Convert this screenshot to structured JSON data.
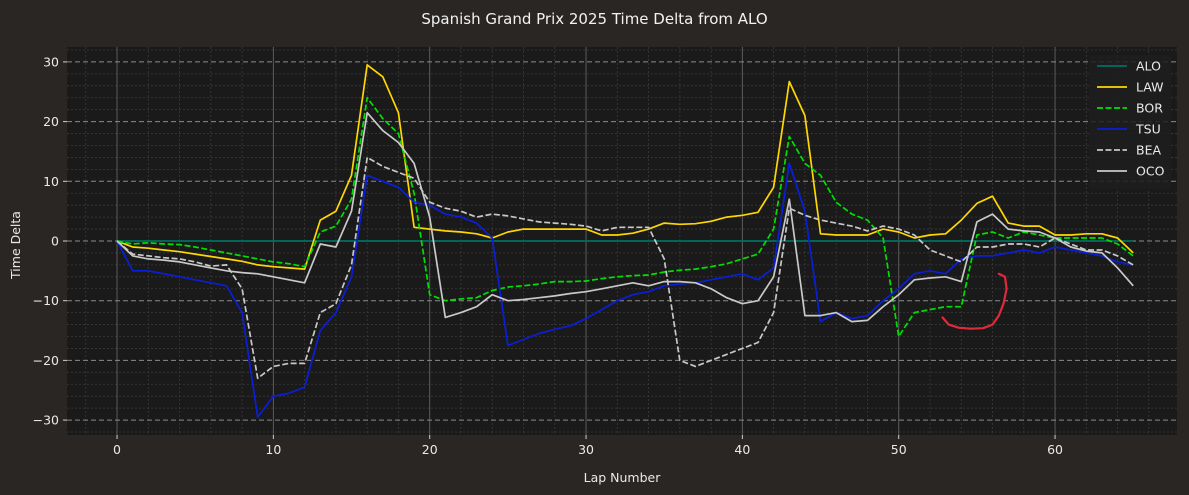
{
  "chart_data": {
    "type": "line",
    "title": "Spanish Grand Prix 2025 Time Delta from ALO",
    "xlabel": "Lap Number",
    "ylabel": "Time Delta",
    "xlim": [
      -3.2,
      67.8
    ],
    "ylim": [
      -32.5,
      32.5
    ],
    "xticks": [
      0,
      10,
      20,
      30,
      40,
      50,
      60
    ],
    "yticks": [
      -30,
      -20,
      -10,
      0,
      10,
      20,
      30
    ],
    "ytick_labels": [
      "−30",
      "−20",
      "−10",
      "0",
      "10",
      "20",
      "30"
    ],
    "grid": true,
    "legend_position": "top-right",
    "background": "#1a1a1a",
    "series": [
      {
        "name": "ALO",
        "color": "#006f62",
        "dash": "solid",
        "x": [
          0,
          65
        ],
        "y": [
          0,
          0
        ]
      },
      {
        "name": "LAW",
        "color": "#ffd700",
        "dash": "solid",
        "x": [
          0,
          1,
          2,
          3,
          4,
          5,
          6,
          7,
          8,
          9,
          10,
          11,
          12,
          13,
          14,
          15,
          16,
          17,
          18,
          19,
          20,
          21,
          22,
          23,
          24,
          25,
          26,
          27,
          28,
          29,
          30,
          31,
          32,
          33,
          34,
          35,
          36,
          37,
          38,
          39,
          40,
          41,
          42,
          43,
          44,
          45,
          46,
          47,
          48,
          49,
          50,
          51,
          52,
          53,
          54,
          55,
          56,
          57,
          58,
          59,
          60,
          61,
          62,
          63,
          64,
          65
        ],
        "y": [
          0,
          -1.0,
          -1.2,
          -1.5,
          -1.8,
          -2.2,
          -2.6,
          -3.0,
          -3.4,
          -4.0,
          -4.3,
          -4.5,
          -4.7,
          3.5,
          5.0,
          11.0,
          29.5,
          27.5,
          21.5,
          2.3,
          2.0,
          1.7,
          1.5,
          1.2,
          0.5,
          1.5,
          2.0,
          2.0,
          2.0,
          2.0,
          2.0,
          1.0,
          1.0,
          1.3,
          2.0,
          3.0,
          2.8,
          2.9,
          3.3,
          4.0,
          4.3,
          4.8,
          9.0,
          26.7,
          21.0,
          1.2,
          1.0,
          1.0,
          1.0,
          2.0,
          1.5,
          0.5,
          1.0,
          1.2,
          3.5,
          6.3,
          7.5,
          3.0,
          2.5,
          2.5,
          1.0,
          1.0,
          1.2,
          1.2,
          0.5,
          -2.0
        ]
      },
      {
        "name": "BOR",
        "color": "#00e000",
        "dash": "dashed",
        "x": [
          0,
          1,
          2,
          3,
          4,
          5,
          6,
          7,
          8,
          9,
          10,
          11,
          12,
          13,
          14,
          15,
          16,
          17,
          18,
          19,
          20,
          21,
          22,
          23,
          24,
          25,
          26,
          27,
          28,
          29,
          30,
          31,
          32,
          33,
          34,
          35,
          36,
          37,
          38,
          39,
          40,
          41,
          42,
          43,
          44,
          45,
          46,
          47,
          48,
          49,
          50,
          51,
          52,
          53,
          54,
          55,
          56,
          57,
          58,
          59,
          60,
          61,
          62,
          63,
          64,
          65
        ],
        "y": [
          0,
          -0.5,
          -0.3,
          -0.5,
          -0.6,
          -1.0,
          -1.5,
          -2.0,
          -2.5,
          -3.0,
          -3.5,
          -3.8,
          -4.3,
          1.5,
          2.5,
          7.0,
          24.0,
          20.5,
          18.0,
          8.0,
          -9.0,
          -10.0,
          -9.7,
          -9.5,
          -8.3,
          -7.7,
          -7.5,
          -7.2,
          -6.8,
          -6.8,
          -6.7,
          -6.3,
          -6.0,
          -5.8,
          -5.7,
          -5.2,
          -4.9,
          -4.7,
          -4.3,
          -3.8,
          -3.0,
          -2.2,
          2.0,
          17.5,
          13.0,
          11.0,
          6.5,
          4.5,
          3.5,
          0.5,
          -16.0,
          -12.0,
          -11.5,
          -11.0,
          -11.0,
          1.0,
          1.5,
          0.5,
          1.5,
          1.0,
          0.5,
          0.5,
          0.5,
          0.5,
          -0.5,
          -2.5
        ]
      },
      {
        "name": "TSU",
        "color": "#0a1fd8",
        "dash": "solid",
        "x": [
          0,
          1,
          2,
          3,
          4,
          5,
          6,
          7,
          8,
          9,
          10,
          11,
          12,
          13,
          14,
          15,
          16,
          17,
          18,
          19,
          20,
          21,
          22,
          23,
          24,
          25,
          26,
          27,
          28,
          29,
          30,
          31,
          32,
          33,
          34,
          35,
          36,
          37,
          38,
          39,
          40,
          41,
          42,
          43,
          44,
          45,
          46,
          47,
          48,
          49,
          50,
          51,
          52,
          53,
          54,
          55,
          56,
          57,
          58,
          59,
          60,
          61,
          62,
          63,
          64,
          65
        ],
        "y": [
          0,
          -5.0,
          -5.0,
          -5.5,
          -6.0,
          -6.5,
          -7.0,
          -7.5,
          -12.0,
          -29.5,
          -26.0,
          -25.5,
          -24.5,
          -15.0,
          -12.0,
          -6.0,
          11.0,
          10.0,
          9.0,
          6.5,
          6.0,
          4.5,
          4.0,
          3.0,
          0.5,
          -17.5,
          -16.5,
          -15.5,
          -14.8,
          -14.2,
          -13.0,
          -11.5,
          -10.0,
          -9.0,
          -8.5,
          -7.5,
          -7.2,
          -7.0,
          -6.5,
          -6.0,
          -5.5,
          -6.5,
          -4.5,
          13.0,
          5.0,
          -13.5,
          -12.0,
          -13.0,
          -12.5,
          -10.0,
          -8.0,
          -5.5,
          -5.0,
          -5.5,
          -3.0,
          -2.5,
          -2.5,
          -2.0,
          -1.5,
          -2.0,
          -1.0,
          -1.5,
          -2.0,
          -2.5,
          -3.5,
          -4.0
        ]
      },
      {
        "name": "BEA",
        "color": "#c8c8c8",
        "dash": "dashed",
        "x": [
          0,
          1,
          2,
          3,
          4,
          5,
          6,
          7,
          8,
          9,
          10,
          11,
          12,
          13,
          14,
          15,
          16,
          17,
          18,
          19,
          20,
          21,
          22,
          23,
          24,
          25,
          26,
          27,
          28,
          29,
          30,
          31,
          32,
          33,
          34,
          35,
          36,
          37,
          38,
          39,
          40,
          41,
          42,
          43,
          44,
          45,
          46,
          47,
          48,
          49,
          50,
          51,
          52,
          53,
          54,
          55,
          56,
          57,
          58,
          59,
          60,
          61,
          62,
          63,
          64,
          65
        ],
        "y": [
          0,
          -2.2,
          -2.5,
          -2.8,
          -3.0,
          -3.5,
          -4.2,
          -4.0,
          -8.0,
          -23.0,
          -21.0,
          -20.5,
          -20.5,
          -12.0,
          -10.5,
          -4.0,
          14.0,
          12.5,
          11.5,
          10.5,
          6.5,
          5.5,
          5.0,
          4.0,
          4.5,
          4.2,
          3.7,
          3.2,
          3.0,
          2.8,
          2.5,
          1.7,
          2.3,
          2.3,
          2.3,
          -3.0,
          -20.0,
          -21.0,
          -20.0,
          -19.0,
          -18.0,
          -17.0,
          -12.0,
          5.5,
          4.3,
          3.5,
          3.0,
          2.5,
          1.7,
          2.5,
          2.0,
          1.0,
          -1.5,
          -2.5,
          -3.5,
          -1.0,
          -1.0,
          -0.5,
          -0.5,
          -1.0,
          0.5,
          -0.5,
          -1.5,
          -1.5,
          -2.5,
          -4.0
        ]
      },
      {
        "name": "OCO",
        "color": "#c9c9c9",
        "dash": "solid",
        "x": [
          0,
          1,
          2,
          3,
          4,
          5,
          6,
          7,
          8,
          9,
          10,
          11,
          12,
          13,
          14,
          15,
          16,
          17,
          18,
          19,
          20,
          21,
          22,
          23,
          24,
          25,
          26,
          27,
          28,
          29,
          30,
          31,
          32,
          33,
          34,
          35,
          36,
          37,
          38,
          39,
          40,
          41,
          42,
          43,
          44,
          45,
          46,
          47,
          48,
          49,
          50,
          51,
          52,
          53,
          54,
          55,
          56,
          57,
          58,
          59,
          60,
          61,
          62,
          63,
          64,
          65
        ],
        "y": [
          0,
          -2.5,
          -3.0,
          -3.2,
          -3.5,
          -4.0,
          -4.5,
          -5.0,
          -5.3,
          -5.5,
          -6.0,
          -6.5,
          -7.0,
          -0.5,
          -1.0,
          5.0,
          21.5,
          18.5,
          16.5,
          13.0,
          4.0,
          -12.8,
          -12.0,
          -11.0,
          -9.0,
          -10.0,
          -9.8,
          -9.5,
          -9.2,
          -8.8,
          -8.5,
          -8.0,
          -7.5,
          -7.0,
          -7.5,
          -6.8,
          -6.8,
          -7.0,
          -8.0,
          -9.5,
          -10.5,
          -10.0,
          -6.0,
          7.0,
          -12.5,
          -12.5,
          -12.0,
          -13.5,
          -13.3,
          -11.0,
          -9.0,
          -6.5,
          -6.2,
          -6.0,
          -6.8,
          3.2,
          4.5,
          2.0,
          1.7,
          1.5,
          0.5,
          -1.0,
          -1.7,
          -2.0,
          -4.5,
          -7.5
        ]
      }
    ],
    "annotation": {
      "color": "#e0293a",
      "x": [
        52.8,
        53.2,
        53.8,
        54.6,
        55.4,
        56.0,
        56.4,
        56.7,
        56.9,
        56.8,
        56.4
      ],
      "y": [
        -12.8,
        -14.0,
        -14.5,
        -14.7,
        -14.6,
        -14.0,
        -12.5,
        -10.5,
        -8.0,
        -6.0,
        -5.5
      ]
    }
  }
}
